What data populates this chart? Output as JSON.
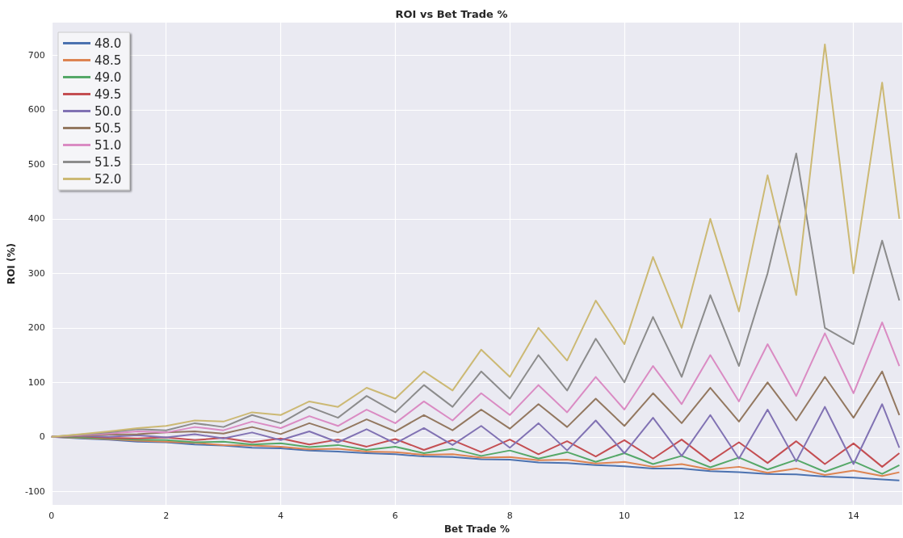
{
  "chart_data": {
    "type": "line",
    "title": "ROI vs Bet Trade %",
    "xlabel": "Bet Trade %",
    "ylabel": "ROI (%)",
    "x": [
      0,
      0.5,
      1,
      1.5,
      2,
      2.5,
      3,
      3.5,
      4,
      4.5,
      5,
      5.5,
      6,
      6.5,
      7,
      7.5,
      8,
      8.5,
      9,
      9.5,
      10,
      10.5,
      11,
      11.5,
      12,
      12.5,
      13,
      13.5,
      14,
      14.5,
      14.8
    ],
    "xlim": [
      0,
      14.85
    ],
    "xticks": [
      0,
      2,
      4,
      6,
      8,
      10,
      12,
      14
    ],
    "ylim": [
      -125,
      760
    ],
    "yticks": [
      -100,
      0,
      100,
      200,
      300,
      400,
      500,
      600,
      700
    ],
    "grid": true,
    "legend": "top left",
    "marker": "none",
    "line_style": "solid",
    "series": [
      {
        "name": "48.0",
        "color": "#4c72b0",
        "values": [
          0,
          -3,
          -5,
          -9,
          -10,
          -14,
          -16,
          -20,
          -21,
          -25,
          -27,
          -30,
          -32,
          -36,
          -37,
          -41,
          -42,
          -47,
          -48,
          -52,
          -54,
          -58,
          -58,
          -63,
          -65,
          -68,
          -69,
          -73,
          -75,
          -78,
          -80
        ]
      },
      {
        "name": "48.5",
        "color": "#dd8452",
        "values": [
          0,
          -2,
          -4,
          -7,
          -9,
          -11,
          -15,
          -16,
          -18,
          -23,
          -22,
          -27,
          -28,
          -33,
          -32,
          -38,
          -37,
          -43,
          -42,
          -49,
          -46,
          -55,
          -50,
          -60,
          -55,
          -66,
          -58,
          -70,
          -62,
          -72,
          -65
        ]
      },
      {
        "name": "49.0",
        "color": "#55a868",
        "values": [
          0,
          -1,
          -3,
          -5,
          -6,
          -10,
          -9,
          -14,
          -12,
          -19,
          -15,
          -24,
          -18,
          -30,
          -22,
          -35,
          -25,
          -40,
          -28,
          -46,
          -30,
          -50,
          -35,
          -56,
          -38,
          -60,
          -42,
          -64,
          -45,
          -68,
          -52
        ]
      },
      {
        "name": "49.5",
        "color": "#c44e52",
        "values": [
          0,
          1,
          -2,
          -3,
          -1,
          -6,
          -2,
          -10,
          -3,
          -14,
          -5,
          -18,
          -4,
          -24,
          -6,
          -28,
          -5,
          -32,
          -8,
          -36,
          -6,
          -40,
          -5,
          -45,
          -10,
          -48,
          -8,
          -50,
          -12,
          -55,
          -30
        ]
      },
      {
        "name": "50.0",
        "color": "#8172b3",
        "values": [
          0,
          2,
          0,
          3,
          -1,
          5,
          -3,
          8,
          -6,
          10,
          -10,
          14,
          -12,
          16,
          -15,
          20,
          -20,
          25,
          -25,
          30,
          -30,
          35,
          -35,
          40,
          -40,
          50,
          -45,
          55,
          -50,
          60,
          -20
        ]
      },
      {
        "name": "50.5",
        "color": "#937860",
        "values": [
          0,
          2,
          4,
          5,
          8,
          10,
          6,
          18,
          5,
          25,
          8,
          32,
          10,
          40,
          12,
          50,
          15,
          60,
          18,
          70,
          20,
          80,
          25,
          90,
          28,
          100,
          30,
          110,
          35,
          120,
          40
        ]
      },
      {
        "name": "51.0",
        "color": "#da8bc3",
        "values": [
          0,
          3,
          6,
          10,
          8,
          18,
          12,
          28,
          16,
          38,
          20,
          50,
          25,
          65,
          30,
          80,
          40,
          95,
          45,
          110,
          50,
          130,
          60,
          150,
          65,
          170,
          75,
          190,
          80,
          210,
          130
        ]
      },
      {
        "name": "51.5",
        "color": "#8c8c8c",
        "values": [
          0,
          4,
          8,
          14,
          12,
          25,
          18,
          40,
          25,
          55,
          35,
          75,
          45,
          95,
          55,
          120,
          70,
          150,
          85,
          180,
          100,
          220,
          110,
          260,
          130,
          300,
          520,
          200,
          170,
          360,
          250
        ]
      },
      {
        "name": "52.0",
        "color": "#ccb974",
        "values": [
          0,
          5,
          10,
          16,
          20,
          30,
          28,
          45,
          40,
          65,
          55,
          90,
          70,
          120,
          85,
          160,
          110,
          200,
          140,
          250,
          170,
          330,
          200,
          400,
          230,
          480,
          260,
          720,
          300,
          650,
          400
        ]
      }
    ]
  }
}
